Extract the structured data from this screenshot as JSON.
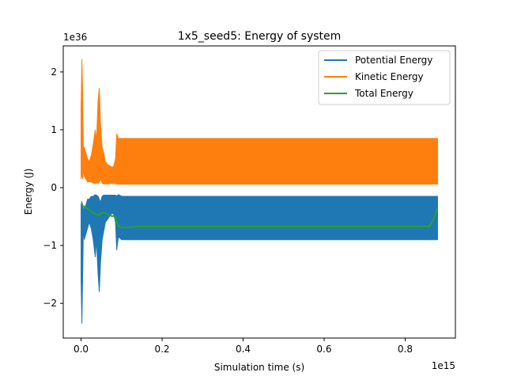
{
  "chart_data": {
    "type": "line",
    "title": "1x5_seed5: Energy of system",
    "xlabel": "Simulation time (s)",
    "ylabel": "Energy (J)",
    "x_offset_text": "1e15",
    "y_offset_text": "1e36",
    "x_scale": 1000000000000000.0,
    "y_scale": 1e+36,
    "xlim": [
      -0.044,
      0.924
    ],
    "ylim": [
      -2.6,
      2.45
    ],
    "x_ticks": [
      0.0,
      0.2,
      0.4,
      0.6,
      0.8
    ],
    "x_tick_labels": [
      "0.0",
      "0.2",
      "0.4",
      "0.6",
      "0.8"
    ],
    "y_ticks": [
      -2,
      -1,
      0,
      1,
      2
    ],
    "y_tick_labels": [
      "−2",
      "−1",
      "0",
      "1",
      "2"
    ],
    "legend_position": "top-right",
    "grid": false,
    "series": [
      {
        "name": "Potential Energy",
        "color": "#1f77b4",
        "style": "band",
        "x": [
          0.0,
          0.002,
          0.004,
          0.006,
          0.008,
          0.012,
          0.016,
          0.02,
          0.025,
          0.03,
          0.035,
          0.038,
          0.042,
          0.045,
          0.048,
          0.052,
          0.056,
          0.06,
          0.065,
          0.07,
          0.075,
          0.08,
          0.085,
          0.088,
          0.092,
          0.1,
          0.2,
          0.4,
          0.6,
          0.8,
          0.87,
          0.88
        ],
        "upper": [
          -0.3,
          -0.25,
          -0.3,
          -0.4,
          -0.35,
          -0.3,
          -0.2,
          -0.2,
          -0.15,
          -0.15,
          -0.12,
          -0.13,
          -0.15,
          -0.2,
          -0.25,
          -0.15,
          -0.13,
          -0.13,
          -0.13,
          -0.13,
          -0.13,
          -0.13,
          -0.13,
          -0.15,
          -0.12,
          -0.15,
          -0.15,
          -0.15,
          -0.15,
          -0.15,
          -0.15,
          -0.15
        ],
        "lower": [
          -1.6,
          -2.35,
          -1.5,
          -0.6,
          -0.9,
          -0.8,
          -0.7,
          -0.6,
          -0.7,
          -0.9,
          -1.2,
          -0.9,
          -1.5,
          -1.8,
          -1.3,
          -0.9,
          -0.75,
          -0.6,
          -0.55,
          -0.5,
          -0.45,
          -0.45,
          -0.6,
          -1.08,
          -0.85,
          -0.9,
          -0.9,
          -0.9,
          -0.9,
          -0.9,
          -0.9,
          -0.9
        ]
      },
      {
        "name": "Kinetic Energy",
        "color": "#ff7f0e",
        "style": "band",
        "x": [
          0.0,
          0.002,
          0.004,
          0.006,
          0.008,
          0.012,
          0.016,
          0.02,
          0.025,
          0.03,
          0.035,
          0.038,
          0.042,
          0.045,
          0.048,
          0.052,
          0.056,
          0.06,
          0.065,
          0.07,
          0.075,
          0.08,
          0.085,
          0.088,
          0.092,
          0.1,
          0.2,
          0.4,
          0.6,
          0.8,
          0.87,
          0.88
        ],
        "upper": [
          1.4,
          2.22,
          1.6,
          0.55,
          0.7,
          0.6,
          0.5,
          0.45,
          0.55,
          0.75,
          1.0,
          0.8,
          1.52,
          1.72,
          1.1,
          0.7,
          0.6,
          0.45,
          0.4,
          0.38,
          0.36,
          0.36,
          0.5,
          0.93,
          0.85,
          0.85,
          0.85,
          0.85,
          0.85,
          0.85,
          0.85,
          0.85
        ],
        "lower": [
          0.15,
          0.25,
          0.15,
          0.3,
          0.2,
          0.15,
          0.1,
          0.1,
          0.1,
          0.08,
          0.07,
          0.08,
          0.07,
          0.1,
          0.15,
          0.08,
          0.06,
          0.07,
          0.06,
          0.07,
          0.07,
          0.07,
          0.07,
          0.06,
          0.06,
          0.06,
          0.06,
          0.06,
          0.06,
          0.06,
          0.06,
          0.06
        ]
      },
      {
        "name": "Total Energy",
        "color": "#2ca02c",
        "style": "line",
        "x": [
          0.0,
          0.005,
          0.01,
          0.015,
          0.02,
          0.025,
          0.03,
          0.035,
          0.04,
          0.045,
          0.05,
          0.055,
          0.06,
          0.065,
          0.07,
          0.075,
          0.08,
          0.085,
          0.088,
          0.092,
          0.1,
          0.11,
          0.12,
          0.15,
          0.2,
          0.3,
          0.4,
          0.5,
          0.6,
          0.7,
          0.8,
          0.86,
          0.87,
          0.875,
          0.88
        ],
        "y": [
          -0.3,
          -0.32,
          -0.33,
          -0.36,
          -0.38,
          -0.41,
          -0.44,
          -0.46,
          -0.47,
          -0.47,
          -0.44,
          -0.43,
          -0.44,
          -0.46,
          -0.47,
          -0.49,
          -0.49,
          -0.5,
          -0.6,
          -0.66,
          -0.69,
          -0.69,
          -0.68,
          -0.67,
          -0.67,
          -0.67,
          -0.67,
          -0.67,
          -0.67,
          -0.67,
          -0.67,
          -0.67,
          -0.55,
          -0.45,
          -0.35
        ]
      }
    ]
  }
}
